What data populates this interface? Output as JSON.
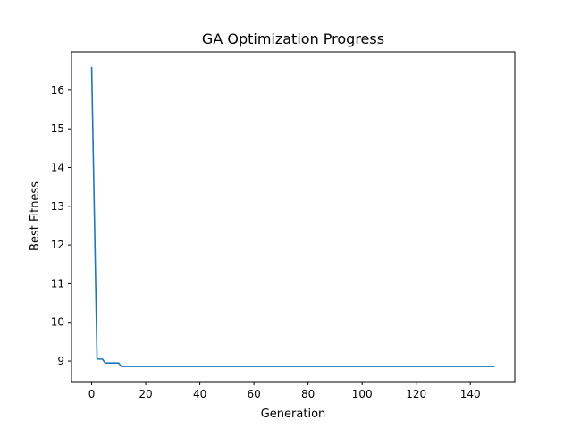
{
  "chart_data": {
    "type": "line",
    "title": "GA Optimization Progress",
    "xlabel": "Generation",
    "ylabel": "Best Fitness",
    "xlim": [
      -7.45,
      156.45
    ],
    "ylim": [
      8.47,
      16.99
    ],
    "grid": false,
    "legend": "none",
    "xticks": [
      0,
      20,
      40,
      60,
      80,
      100,
      120,
      140
    ],
    "xtick_labels": [
      "0",
      "20",
      "40",
      "60",
      "80",
      "100",
      "120",
      "140"
    ],
    "yticks": [
      9,
      10,
      11,
      12,
      13,
      14,
      15,
      16
    ],
    "ytick_labels": [
      "9",
      "10",
      "11",
      "12",
      "13",
      "14",
      "15",
      "16"
    ],
    "series": [
      {
        "color": "#1f77b4",
        "points": [
          [
            0,
            16.6
          ],
          [
            2,
            9.05
          ],
          [
            4,
            9.05
          ],
          [
            5,
            8.95
          ],
          [
            10,
            8.95
          ],
          [
            11,
            8.86
          ],
          [
            149,
            8.86
          ]
        ]
      }
    ]
  }
}
